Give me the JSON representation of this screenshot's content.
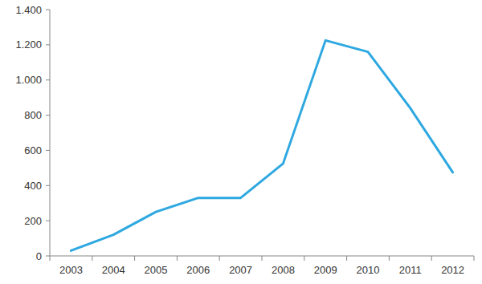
{
  "chart_data": {
    "type": "line",
    "categories": [
      "2003",
      "2004",
      "2005",
      "2006",
      "2007",
      "2008",
      "2009",
      "2010",
      "2011",
      "2012"
    ],
    "values": [
      30,
      120,
      250,
      330,
      330,
      525,
      1225,
      1160,
      840,
      475
    ],
    "color": "#2ea8e0",
    "ylim": [
      0,
      1400
    ],
    "yticks": [
      0,
      200,
      400,
      600,
      800,
      {
        "value": 1000,
        "label": "1.000"
      },
      {
        "value": 1200,
        "label": "1.200"
      },
      {
        "value": 1400,
        "label": "1.400"
      }
    ],
    "grid": false
  }
}
